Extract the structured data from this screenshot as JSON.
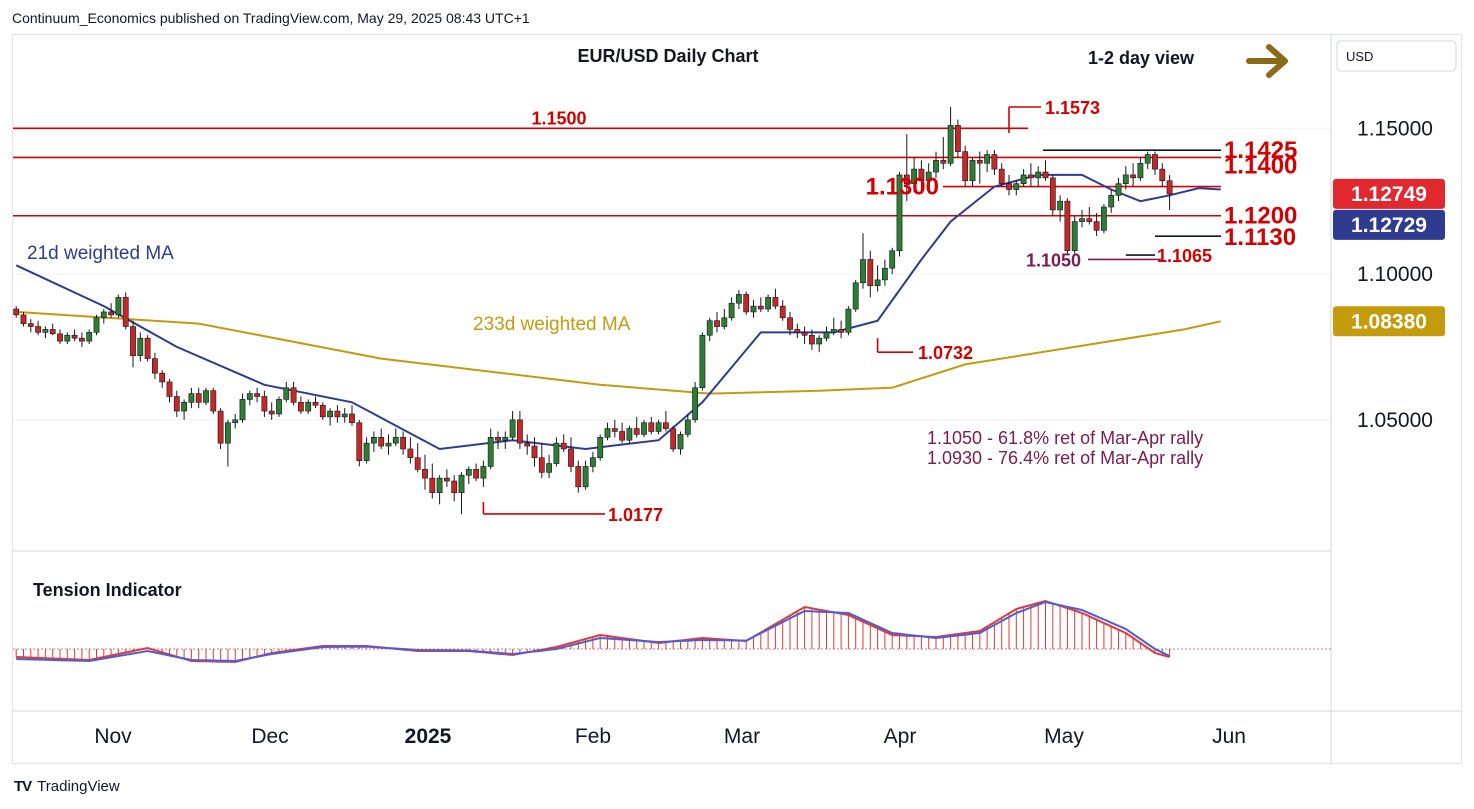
{
  "header": {
    "published": "Continuum_Economics published on TradingView.com, May 29, 2025 08:43 UTC+1"
  },
  "footer": {
    "brand": "TradingView"
  },
  "chart_data": {
    "type": "candlestick",
    "title": "EUR/USD Daily Chart",
    "view_label": "1-2 day view",
    "currency": "USD",
    "y_axis": {
      "ticks": [
        "1.15000",
        "1.10000",
        "1.05000"
      ],
      "ylim": [
        1.005,
        1.182
      ]
    },
    "x_axis": {
      "ticks": [
        "Nov",
        "Dec",
        "2025",
        "Feb",
        "Mar",
        "Apr",
        "May",
        "Jun"
      ]
    },
    "price_badges": [
      {
        "text": "1.12749",
        "color": "#e0282e"
      },
      {
        "text": "1.12729",
        "color": "#2f3b8f"
      },
      {
        "text": "1.08380",
        "color": "#c49b0d"
      }
    ],
    "levels": [
      {
        "label": "1.1500",
        "value": 1.15
      },
      {
        "label": "1.1400",
        "value": 1.14
      },
      {
        "label": "1.1300",
        "value": 1.13
      },
      {
        "label": "1.1200",
        "value": 1.12
      }
    ],
    "annotations": [
      {
        "label": "1.1573",
        "value": 1.1573
      },
      {
        "label": "1.1425",
        "value": 1.1425
      },
      {
        "label": "1.1130",
        "value": 1.113
      },
      {
        "label": "1.1065",
        "value": 1.1065
      },
      {
        "label": "1.1050",
        "value": 1.105
      },
      {
        "label": "1.0732",
        "value": 1.0732
      },
      {
        "label": "1.0177",
        "value": 1.0177
      }
    ],
    "series": [
      {
        "name": "21d weighted MA",
        "color": "#2f3b8f"
      },
      {
        "name": "233d weighted MA",
        "color": "#c49b0d"
      }
    ],
    "notes": [
      "1.1050 - 61.8% ret of Mar-Apr rally",
      "1.0930 - 76.4% ret of Mar-Apr rally"
    ],
    "indicator": {
      "name": "Tension Indicator"
    },
    "colors": {
      "up": "#2e7d32",
      "down": "#c62828",
      "level": "#d50000",
      "note": "#7b1b4f"
    },
    "ohlc": [
      [
        1.088,
        1.089,
        1.085,
        1.086
      ],
      [
        1.086,
        1.087,
        1.082,
        1.083
      ],
      [
        1.083,
        1.0845,
        1.08,
        1.082
      ],
      [
        1.082,
        1.084,
        1.079,
        1.08
      ],
      [
        1.08,
        1.082,
        1.078,
        1.081
      ],
      [
        1.081,
        1.083,
        1.079,
        1.0795
      ],
      [
        1.0795,
        1.081,
        1.076,
        1.077
      ],
      [
        1.077,
        1.08,
        1.076,
        1.079
      ],
      [
        1.079,
        1.081,
        1.077,
        1.078
      ],
      [
        1.078,
        1.08,
        1.075,
        1.077
      ],
      [
        1.077,
        1.081,
        1.076,
        1.08
      ],
      [
        1.08,
        1.086,
        1.079,
        1.085
      ],
      [
        1.085,
        1.088,
        1.083,
        1.087
      ],
      [
        1.087,
        1.09,
        1.085,
        1.086
      ],
      [
        1.086,
        1.093,
        1.085,
        1.092
      ],
      [
        1.092,
        1.0937,
        1.081,
        1.082
      ],
      [
        1.082,
        1.084,
        1.068,
        1.072
      ],
      [
        1.072,
        1.08,
        1.07,
        1.078
      ],
      [
        1.078,
        1.079,
        1.07,
        1.071
      ],
      [
        1.071,
        1.073,
        1.064,
        1.066
      ],
      [
        1.066,
        1.067,
        1.061,
        1.063
      ],
      [
        1.063,
        1.064,
        1.056,
        1.058
      ],
      [
        1.058,
        1.06,
        1.051,
        1.053
      ],
      [
        1.053,
        1.057,
        1.05,
        1.056
      ],
      [
        1.056,
        1.061,
        1.054,
        1.059
      ],
      [
        1.059,
        1.061,
        1.054,
        1.056
      ],
      [
        1.056,
        1.061,
        1.055,
        1.06
      ],
      [
        1.06,
        1.061,
        1.052,
        1.053
      ],
      [
        1.053,
        1.054,
        1.04,
        1.042
      ],
      [
        1.042,
        1.05,
        1.034,
        1.049
      ],
      [
        1.049,
        1.052,
        1.047,
        1.05
      ],
      [
        1.05,
        1.059,
        1.049,
        1.057
      ],
      [
        1.057,
        1.06,
        1.055,
        1.059
      ],
      [
        1.059,
        1.061,
        1.056,
        1.058
      ],
      [
        1.058,
        1.06,
        1.051,
        1.053
      ],
      [
        1.053,
        1.056,
        1.05,
        1.052
      ],
      [
        1.052,
        1.058,
        1.051,
        1.057
      ],
      [
        1.057,
        1.063,
        1.056,
        1.061
      ],
      [
        1.061,
        1.063,
        1.055,
        1.056
      ],
      [
        1.056,
        1.058,
        1.052,
        1.053
      ],
      [
        1.053,
        1.057,
        1.052,
        1.056
      ],
      [
        1.056,
        1.058,
        1.054,
        1.055
      ],
      [
        1.055,
        1.056,
        1.05,
        1.051
      ],
      [
        1.051,
        1.054,
        1.048,
        1.053
      ],
      [
        1.053,
        1.055,
        1.049,
        1.051
      ],
      [
        1.051,
        1.054,
        1.049,
        1.052
      ],
      [
        1.052,
        1.055,
        1.048,
        1.049
      ],
      [
        1.049,
        1.05,
        1.034,
        1.036
      ],
      [
        1.036,
        1.044,
        1.035,
        1.042
      ],
      [
        1.042,
        1.046,
        1.039,
        1.044
      ],
      [
        1.044,
        1.047,
        1.04,
        1.041
      ],
      [
        1.041,
        1.045,
        1.038,
        1.042
      ],
      [
        1.042,
        1.047,
        1.041,
        1.044
      ],
      [
        1.044,
        1.046,
        1.038,
        1.04
      ],
      [
        1.04,
        1.044,
        1.035,
        1.037
      ],
      [
        1.037,
        1.042,
        1.032,
        1.033
      ],
      [
        1.033,
        1.038,
        1.026,
        1.03
      ],
      [
        1.03,
        1.035,
        1.023,
        1.025
      ],
      [
        1.025,
        1.031,
        1.021,
        1.03
      ],
      [
        1.03,
        1.033,
        1.027,
        1.029
      ],
      [
        1.029,
        1.031,
        1.022,
        1.025
      ],
      [
        1.025,
        1.032,
        1.0177,
        1.031
      ],
      [
        1.031,
        1.034,
        1.028,
        1.033
      ],
      [
        1.033,
        1.035,
        1.029,
        1.03
      ],
      [
        1.03,
        1.036,
        1.027,
        1.034
      ],
      [
        1.034,
        1.047,
        1.033,
        1.044
      ],
      [
        1.044,
        1.046,
        1.04,
        1.043
      ],
      [
        1.043,
        1.046,
        1.04,
        1.044
      ],
      [
        1.044,
        1.053,
        1.043,
        1.05
      ],
      [
        1.05,
        1.053,
        1.04,
        1.042
      ],
      [
        1.042,
        1.045,
        1.038,
        1.041
      ],
      [
        1.041,
        1.044,
        1.034,
        1.037
      ],
      [
        1.037,
        1.042,
        1.03,
        1.032
      ],
      [
        1.032,
        1.038,
        1.03,
        1.035
      ],
      [
        1.035,
        1.044,
        1.034,
        1.042
      ],
      [
        1.042,
        1.045,
        1.039,
        1.04
      ],
      [
        1.04,
        1.044,
        1.032,
        1.034
      ],
      [
        1.034,
        1.036,
        1.025,
        1.027
      ],
      [
        1.027,
        1.036,
        1.026,
        1.034
      ],
      [
        1.034,
        1.039,
        1.032,
        1.037
      ],
      [
        1.037,
        1.045,
        1.036,
        1.044
      ],
      [
        1.044,
        1.049,
        1.043,
        1.047
      ],
      [
        1.047,
        1.05,
        1.044,
        1.046
      ],
      [
        1.046,
        1.049,
        1.042,
        1.043
      ],
      [
        1.043,
        1.048,
        1.042,
        1.047
      ],
      [
        1.047,
        1.051,
        1.044,
        1.045
      ],
      [
        1.045,
        1.05,
        1.044,
        1.049
      ],
      [
        1.049,
        1.051,
        1.045,
        1.046
      ],
      [
        1.046,
        1.05,
        1.045,
        1.049
      ],
      [
        1.049,
        1.053,
        1.046,
        1.047
      ],
      [
        1.047,
        1.048,
        1.039,
        1.04
      ],
      [
        1.04,
        1.046,
        1.038,
        1.045
      ],
      [
        1.045,
        1.052,
        1.044,
        1.05
      ],
      [
        1.05,
        1.063,
        1.049,
        1.061
      ],
      [
        1.061,
        1.08,
        1.06,
        1.079
      ],
      [
        1.079,
        1.085,
        1.077,
        1.084
      ],
      [
        1.084,
        1.087,
        1.08,
        1.082
      ],
      [
        1.082,
        1.088,
        1.081,
        1.085
      ],
      [
        1.085,
        1.092,
        1.084,
        1.09
      ],
      [
        1.09,
        1.0945,
        1.088,
        1.093
      ],
      [
        1.093,
        1.094,
        1.086,
        1.087
      ],
      [
        1.087,
        1.091,
        1.085,
        1.089
      ],
      [
        1.089,
        1.092,
        1.087,
        1.088
      ],
      [
        1.088,
        1.093,
        1.087,
        1.092
      ],
      [
        1.092,
        1.095,
        1.088,
        1.089
      ],
      [
        1.089,
        1.091,
        1.084,
        1.085
      ],
      [
        1.085,
        1.087,
        1.079,
        1.081
      ],
      [
        1.081,
        1.083,
        1.078,
        1.08
      ],
      [
        1.08,
        1.082,
        1.076,
        1.079
      ],
      [
        1.079,
        1.081,
        1.074,
        1.076
      ],
      [
        1.076,
        1.079,
        1.0732,
        1.078
      ],
      [
        1.078,
        1.082,
        1.077,
        1.08
      ],
      [
        1.08,
        1.085,
        1.079,
        1.081
      ],
      [
        1.081,
        1.084,
        1.078,
        1.08
      ],
      [
        1.08,
        1.089,
        1.079,
        1.088
      ],
      [
        1.088,
        1.098,
        1.087,
        1.097
      ],
      [
        1.097,
        1.114,
        1.095,
        1.105
      ],
      [
        1.105,
        1.108,
        1.092,
        1.096
      ],
      [
        1.096,
        1.103,
        1.094,
        1.098
      ],
      [
        1.098,
        1.105,
        1.096,
        1.102
      ],
      [
        1.102,
        1.109,
        1.1,
        1.108
      ],
      [
        1.108,
        1.135,
        1.106,
        1.134
      ],
      [
        1.134,
        1.148,
        1.125,
        1.131
      ],
      [
        1.131,
        1.14,
        1.128,
        1.136
      ],
      [
        1.136,
        1.139,
        1.128,
        1.132
      ],
      [
        1.132,
        1.138,
        1.13,
        1.135
      ],
      [
        1.135,
        1.142,
        1.133,
        1.139
      ],
      [
        1.139,
        1.147,
        1.136,
        1.138
      ],
      [
        1.138,
        1.1573,
        1.137,
        1.151
      ],
      [
        1.151,
        1.153,
        1.14,
        1.142
      ],
      [
        1.142,
        1.144,
        1.13,
        1.132
      ],
      [
        1.132,
        1.14,
        1.13,
        1.139
      ],
      [
        1.139,
        1.142,
        1.131,
        1.138
      ],
      [
        1.138,
        1.1425,
        1.135,
        1.141
      ],
      [
        1.141,
        1.1425,
        1.134,
        1.136
      ],
      [
        1.136,
        1.138,
        1.13,
        1.131
      ],
      [
        1.131,
        1.134,
        1.127,
        1.129
      ],
      [
        1.129,
        1.132,
        1.127,
        1.131
      ],
      [
        1.131,
        1.136,
        1.13,
        1.134
      ],
      [
        1.134,
        1.138,
        1.13,
        1.133
      ],
      [
        1.133,
        1.137,
        1.13,
        1.135
      ],
      [
        1.135,
        1.139,
        1.132,
        1.133
      ],
      [
        1.133,
        1.134,
        1.12,
        1.122
      ],
      [
        1.122,
        1.127,
        1.118,
        1.125
      ],
      [
        1.125,
        1.126,
        1.1065,
        1.108
      ],
      [
        1.108,
        1.12,
        1.107,
        1.118
      ],
      [
        1.118,
        1.122,
        1.116,
        1.119
      ],
      [
        1.119,
        1.123,
        1.117,
        1.118
      ],
      [
        1.118,
        1.121,
        1.113,
        1.115
      ],
      [
        1.115,
        1.124,
        1.114,
        1.123
      ],
      [
        1.123,
        1.129,
        1.121,
        1.127
      ],
      [
        1.127,
        1.133,
        1.125,
        1.131
      ],
      [
        1.131,
        1.137,
        1.129,
        1.134
      ],
      [
        1.134,
        1.138,
        1.13,
        1.133
      ],
      [
        1.133,
        1.14,
        1.132,
        1.138
      ],
      [
        1.138,
        1.142,
        1.136,
        1.141
      ],
      [
        1.141,
        1.142,
        1.134,
        1.136
      ],
      [
        1.136,
        1.138,
        1.13,
        1.132
      ],
      [
        1.132,
        1.134,
        1.122,
        1.1275
      ]
    ],
    "wma21": [
      [
        0,
        1.103
      ],
      [
        12,
        1.089
      ],
      [
        22,
        1.075
      ],
      [
        34,
        1.062
      ],
      [
        46,
        1.056
      ],
      [
        58,
        1.04
      ],
      [
        68,
        1.043
      ],
      [
        78,
        1.04
      ],
      [
        88,
        1.043
      ],
      [
        94,
        1.056
      ],
      [
        102,
        1.08
      ],
      [
        112,
        1.08
      ],
      [
        118,
        1.084
      ],
      [
        124,
        1.105
      ],
      [
        128,
        1.118
      ],
      [
        134,
        1.13
      ],
      [
        140,
        1.134
      ],
      [
        146,
        1.134
      ],
      [
        150,
        1.129
      ],
      [
        154,
        1.125
      ],
      [
        158,
        1.127
      ],
      [
        162,
        1.1295
      ],
      [
        165,
        1.129
      ]
    ],
    "wma233": [
      [
        0,
        1.087
      ],
      [
        25,
        1.083
      ],
      [
        50,
        1.071
      ],
      [
        80,
        1.062
      ],
      [
        95,
        1.059
      ],
      [
        110,
        1.06
      ],
      [
        120,
        1.061
      ],
      [
        130,
        1.069
      ],
      [
        145,
        1.075
      ],
      [
        160,
        1.081
      ],
      [
        165,
        1.0838
      ]
    ],
    "tension": [
      [
        0,
        -0.4
      ],
      [
        10,
        -0.55
      ],
      [
        18,
        0.05
      ],
      [
        24,
        -0.6
      ],
      [
        30,
        -0.65
      ],
      [
        35,
        -0.2
      ],
      [
        42,
        0.15
      ],
      [
        48,
        0.15
      ],
      [
        55,
        -0.1
      ],
      [
        62,
        -0.1
      ],
      [
        68,
        -0.3
      ],
      [
        74,
        0.1
      ],
      [
        80,
        0.7
      ],
      [
        88,
        0.3
      ],
      [
        94,
        0.55
      ],
      [
        100,
        0.4
      ],
      [
        108,
        2.1
      ],
      [
        114,
        1.7
      ],
      [
        120,
        0.7
      ],
      [
        126,
        0.6
      ],
      [
        132,
        0.9
      ],
      [
        137,
        2.0
      ],
      [
        141,
        2.4
      ],
      [
        146,
        1.8
      ],
      [
        152,
        0.8
      ],
      [
        156,
        -0.2
      ],
      [
        158,
        -0.4
      ],
      [
        162,
        0.4
      ],
      [
        165,
        0.3
      ]
    ],
    "tension_signal": [
      [
        0,
        -0.5
      ],
      [
        10,
        -0.6
      ],
      [
        18,
        -0.1
      ],
      [
        24,
        -0.55
      ],
      [
        30,
        -0.6
      ],
      [
        35,
        -0.25
      ],
      [
        42,
        0.1
      ],
      [
        48,
        0.12
      ],
      [
        55,
        -0.05
      ],
      [
        62,
        -0.08
      ],
      [
        68,
        -0.25
      ],
      [
        74,
        0.0
      ],
      [
        80,
        0.55
      ],
      [
        88,
        0.35
      ],
      [
        94,
        0.45
      ],
      [
        100,
        0.42
      ],
      [
        108,
        1.9
      ],
      [
        114,
        1.8
      ],
      [
        120,
        0.8
      ],
      [
        126,
        0.55
      ],
      [
        132,
        0.8
      ],
      [
        137,
        1.8
      ],
      [
        141,
        2.35
      ],
      [
        146,
        1.95
      ],
      [
        152,
        1.0
      ],
      [
        156,
        0.0
      ],
      [
        158,
        -0.35
      ],
      [
        162,
        0.25
      ],
      [
        165,
        0.3
      ]
    ]
  }
}
